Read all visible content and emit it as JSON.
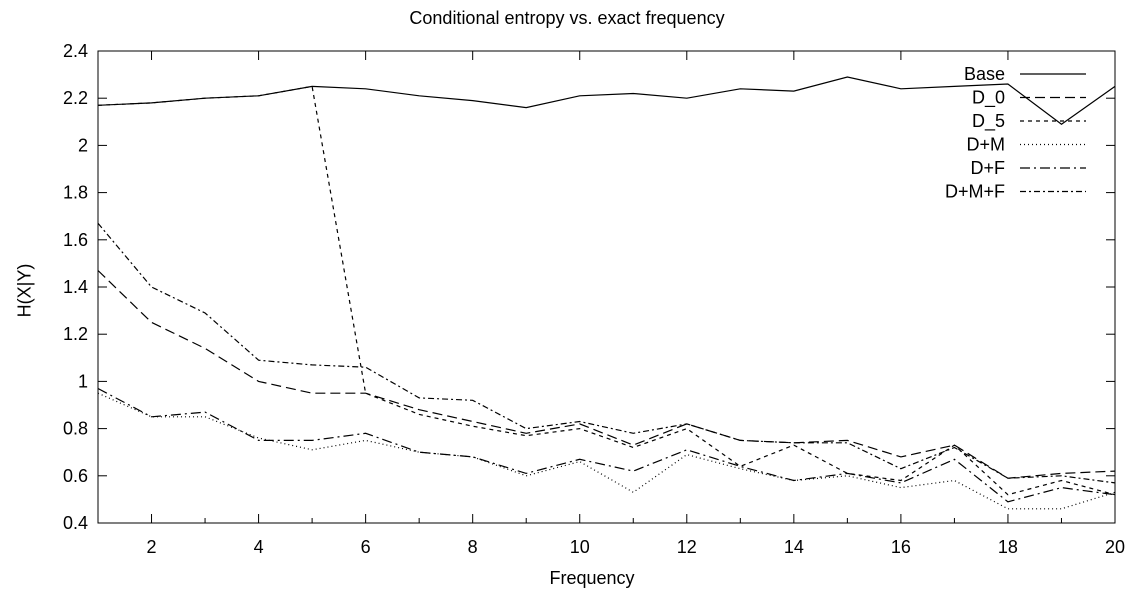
{
  "chart_data": {
    "type": "line",
    "title": "Conditional entropy vs. exact frequency",
    "xlabel": "Frequency",
    "ylabel": "H(X|Y)",
    "xlim": [
      1,
      20
    ],
    "ylim": [
      0.4,
      2.4
    ],
    "xticks": [
      2,
      4,
      6,
      8,
      10,
      12,
      14,
      16,
      18,
      20
    ],
    "yticks": [
      0.4,
      0.6,
      0.8,
      1,
      1.2,
      1.4,
      1.6,
      1.8,
      2,
      2.2,
      2.4
    ],
    "grid": false,
    "legend_position": "top-right",
    "x": [
      1,
      2,
      3,
      4,
      5,
      6,
      7,
      8,
      9,
      10,
      11,
      12,
      13,
      14,
      15,
      16,
      17,
      18,
      19,
      20
    ],
    "series": [
      {
        "name": "Base",
        "dash": "",
        "values": [
          2.17,
          2.18,
          2.2,
          2.21,
          2.25,
          2.24,
          2.21,
          2.19,
          2.16,
          2.21,
          2.22,
          2.2,
          2.24,
          2.23,
          2.29,
          2.24,
          2.25,
          2.26,
          2.09,
          2.25
        ]
      },
      {
        "name": "D_0",
        "dash": "10,5",
        "values": [
          1.47,
          1.25,
          1.14,
          1.0,
          0.95,
          0.95,
          0.88,
          0.83,
          0.78,
          0.82,
          0.73,
          0.82,
          0.75,
          0.74,
          0.75,
          0.68,
          0.73,
          0.59,
          0.61,
          0.62
        ]
      },
      {
        "name": "D_5",
        "dash": "4,4",
        "values": [
          2.17,
          2.18,
          2.2,
          2.21,
          2.25,
          0.95,
          0.86,
          0.81,
          0.77,
          0.8,
          0.72,
          0.8,
          0.64,
          0.73,
          0.61,
          0.58,
          0.73,
          0.52,
          0.58,
          0.52
        ]
      },
      {
        "name": "D+M",
        "dash": "1,3",
        "values": [
          0.95,
          0.85,
          0.85,
          0.76,
          0.71,
          0.75,
          0.7,
          0.68,
          0.6,
          0.66,
          0.53,
          0.69,
          0.63,
          0.58,
          0.6,
          0.55,
          0.58,
          0.46,
          0.46,
          0.53
        ]
      },
      {
        "name": "D+F",
        "dash": "10,4,2,4",
        "values": [
          0.97,
          0.85,
          0.87,
          0.75,
          0.75,
          0.78,
          0.7,
          0.68,
          0.61,
          0.67,
          0.62,
          0.71,
          0.64,
          0.58,
          0.61,
          0.57,
          0.67,
          0.49,
          0.55,
          0.52
        ]
      },
      {
        "name": "D+M+F",
        "dash": "6,3,2,3",
        "values": [
          1.67,
          1.4,
          1.29,
          1.09,
          1.07,
          1.06,
          0.93,
          0.92,
          0.8,
          0.83,
          0.78,
          0.82,
          0.75,
          0.74,
          0.74,
          0.63,
          0.72,
          0.59,
          0.6,
          0.57
        ]
      }
    ]
  }
}
